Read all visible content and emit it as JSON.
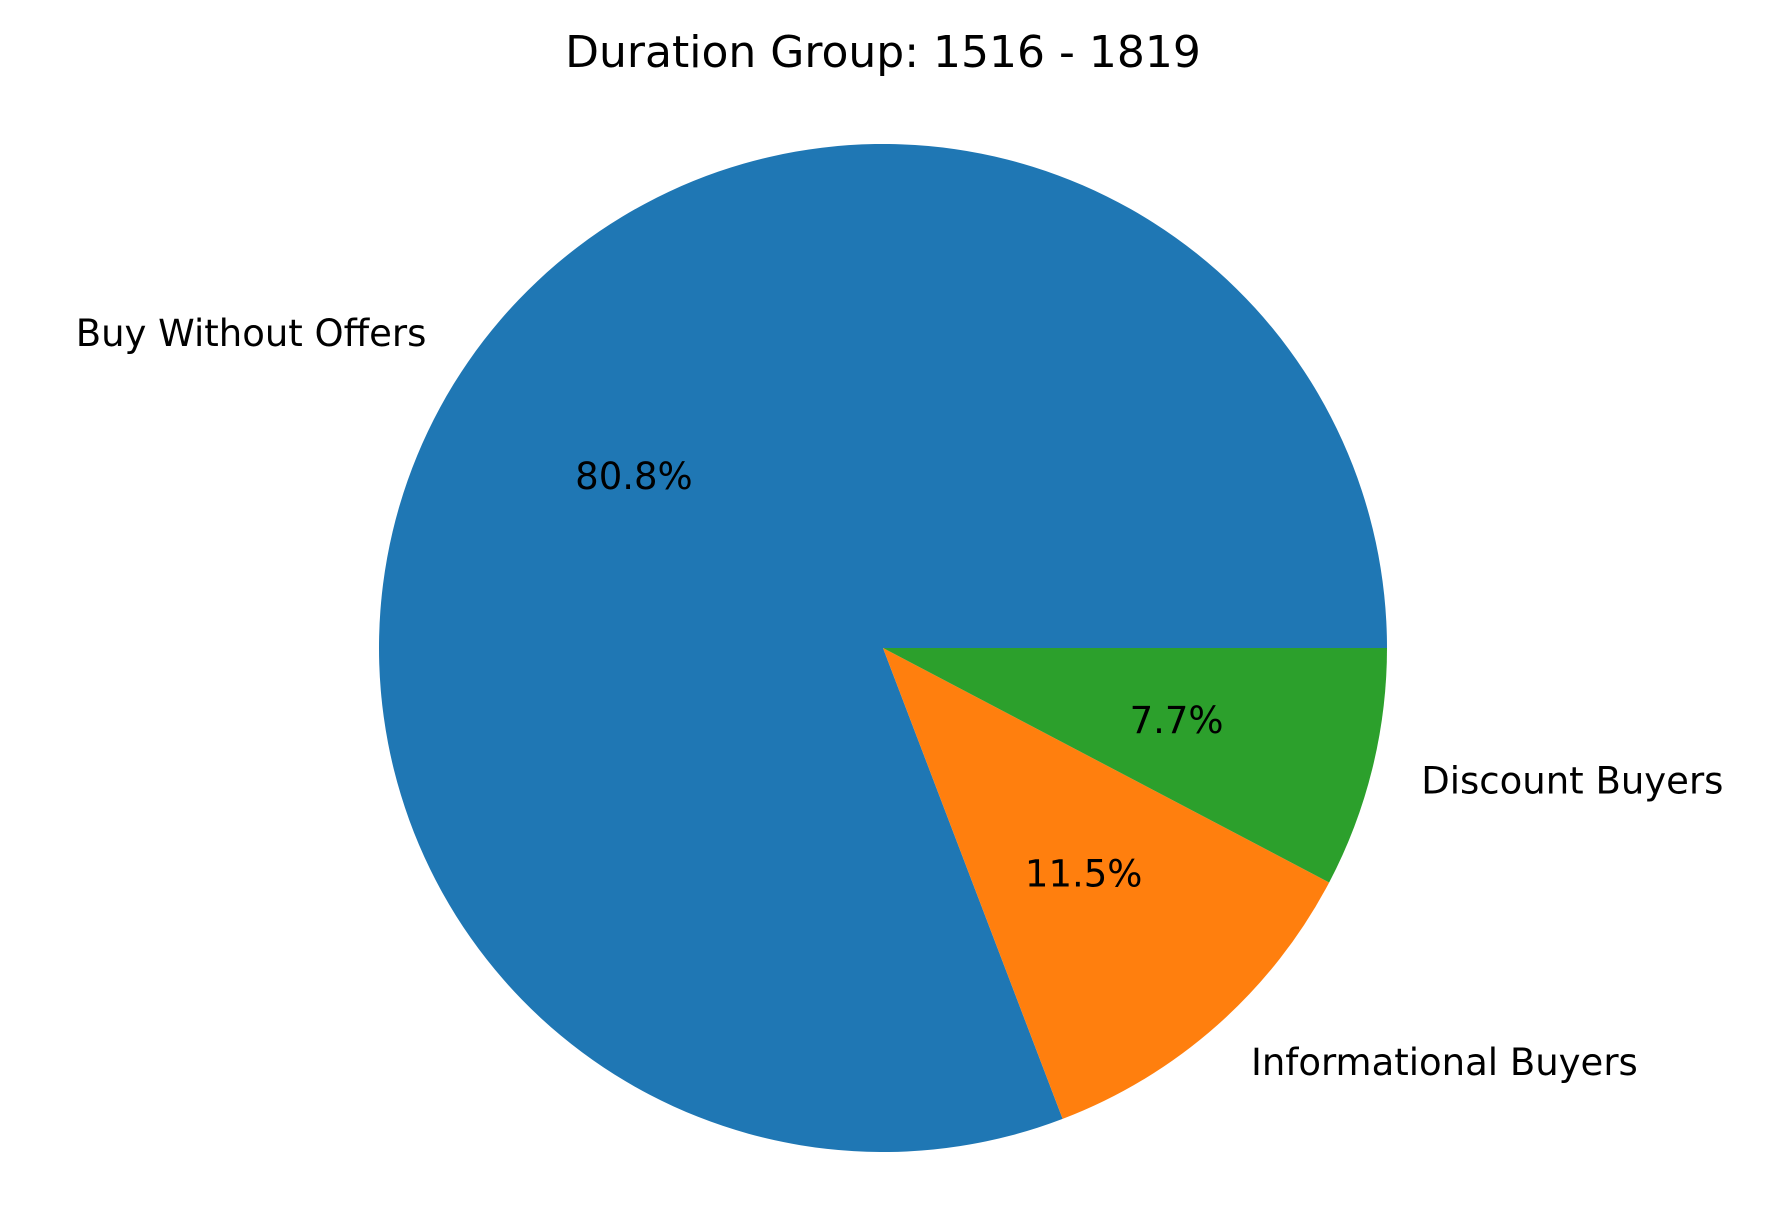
{
  "chart_data": {
    "type": "pie",
    "title": "Duration Group: 1516 - 1819",
    "slices": [
      {
        "label": "Buy Without Offers",
        "value": 80.8,
        "pct_label": "80.8%",
        "color": "#1f77b4"
      },
      {
        "label": "Informational Buyers",
        "value": 11.5,
        "pct_label": "11.5%",
        "color": "#ff7f0e"
      },
      {
        "label": "Discount Buyers",
        "value": 7.7,
        "pct_label": "7.7%",
        "color": "#2ca02c"
      }
    ],
    "start_angle": "3 o'clock",
    "direction": "counterclockwise",
    "legend": "none"
  }
}
